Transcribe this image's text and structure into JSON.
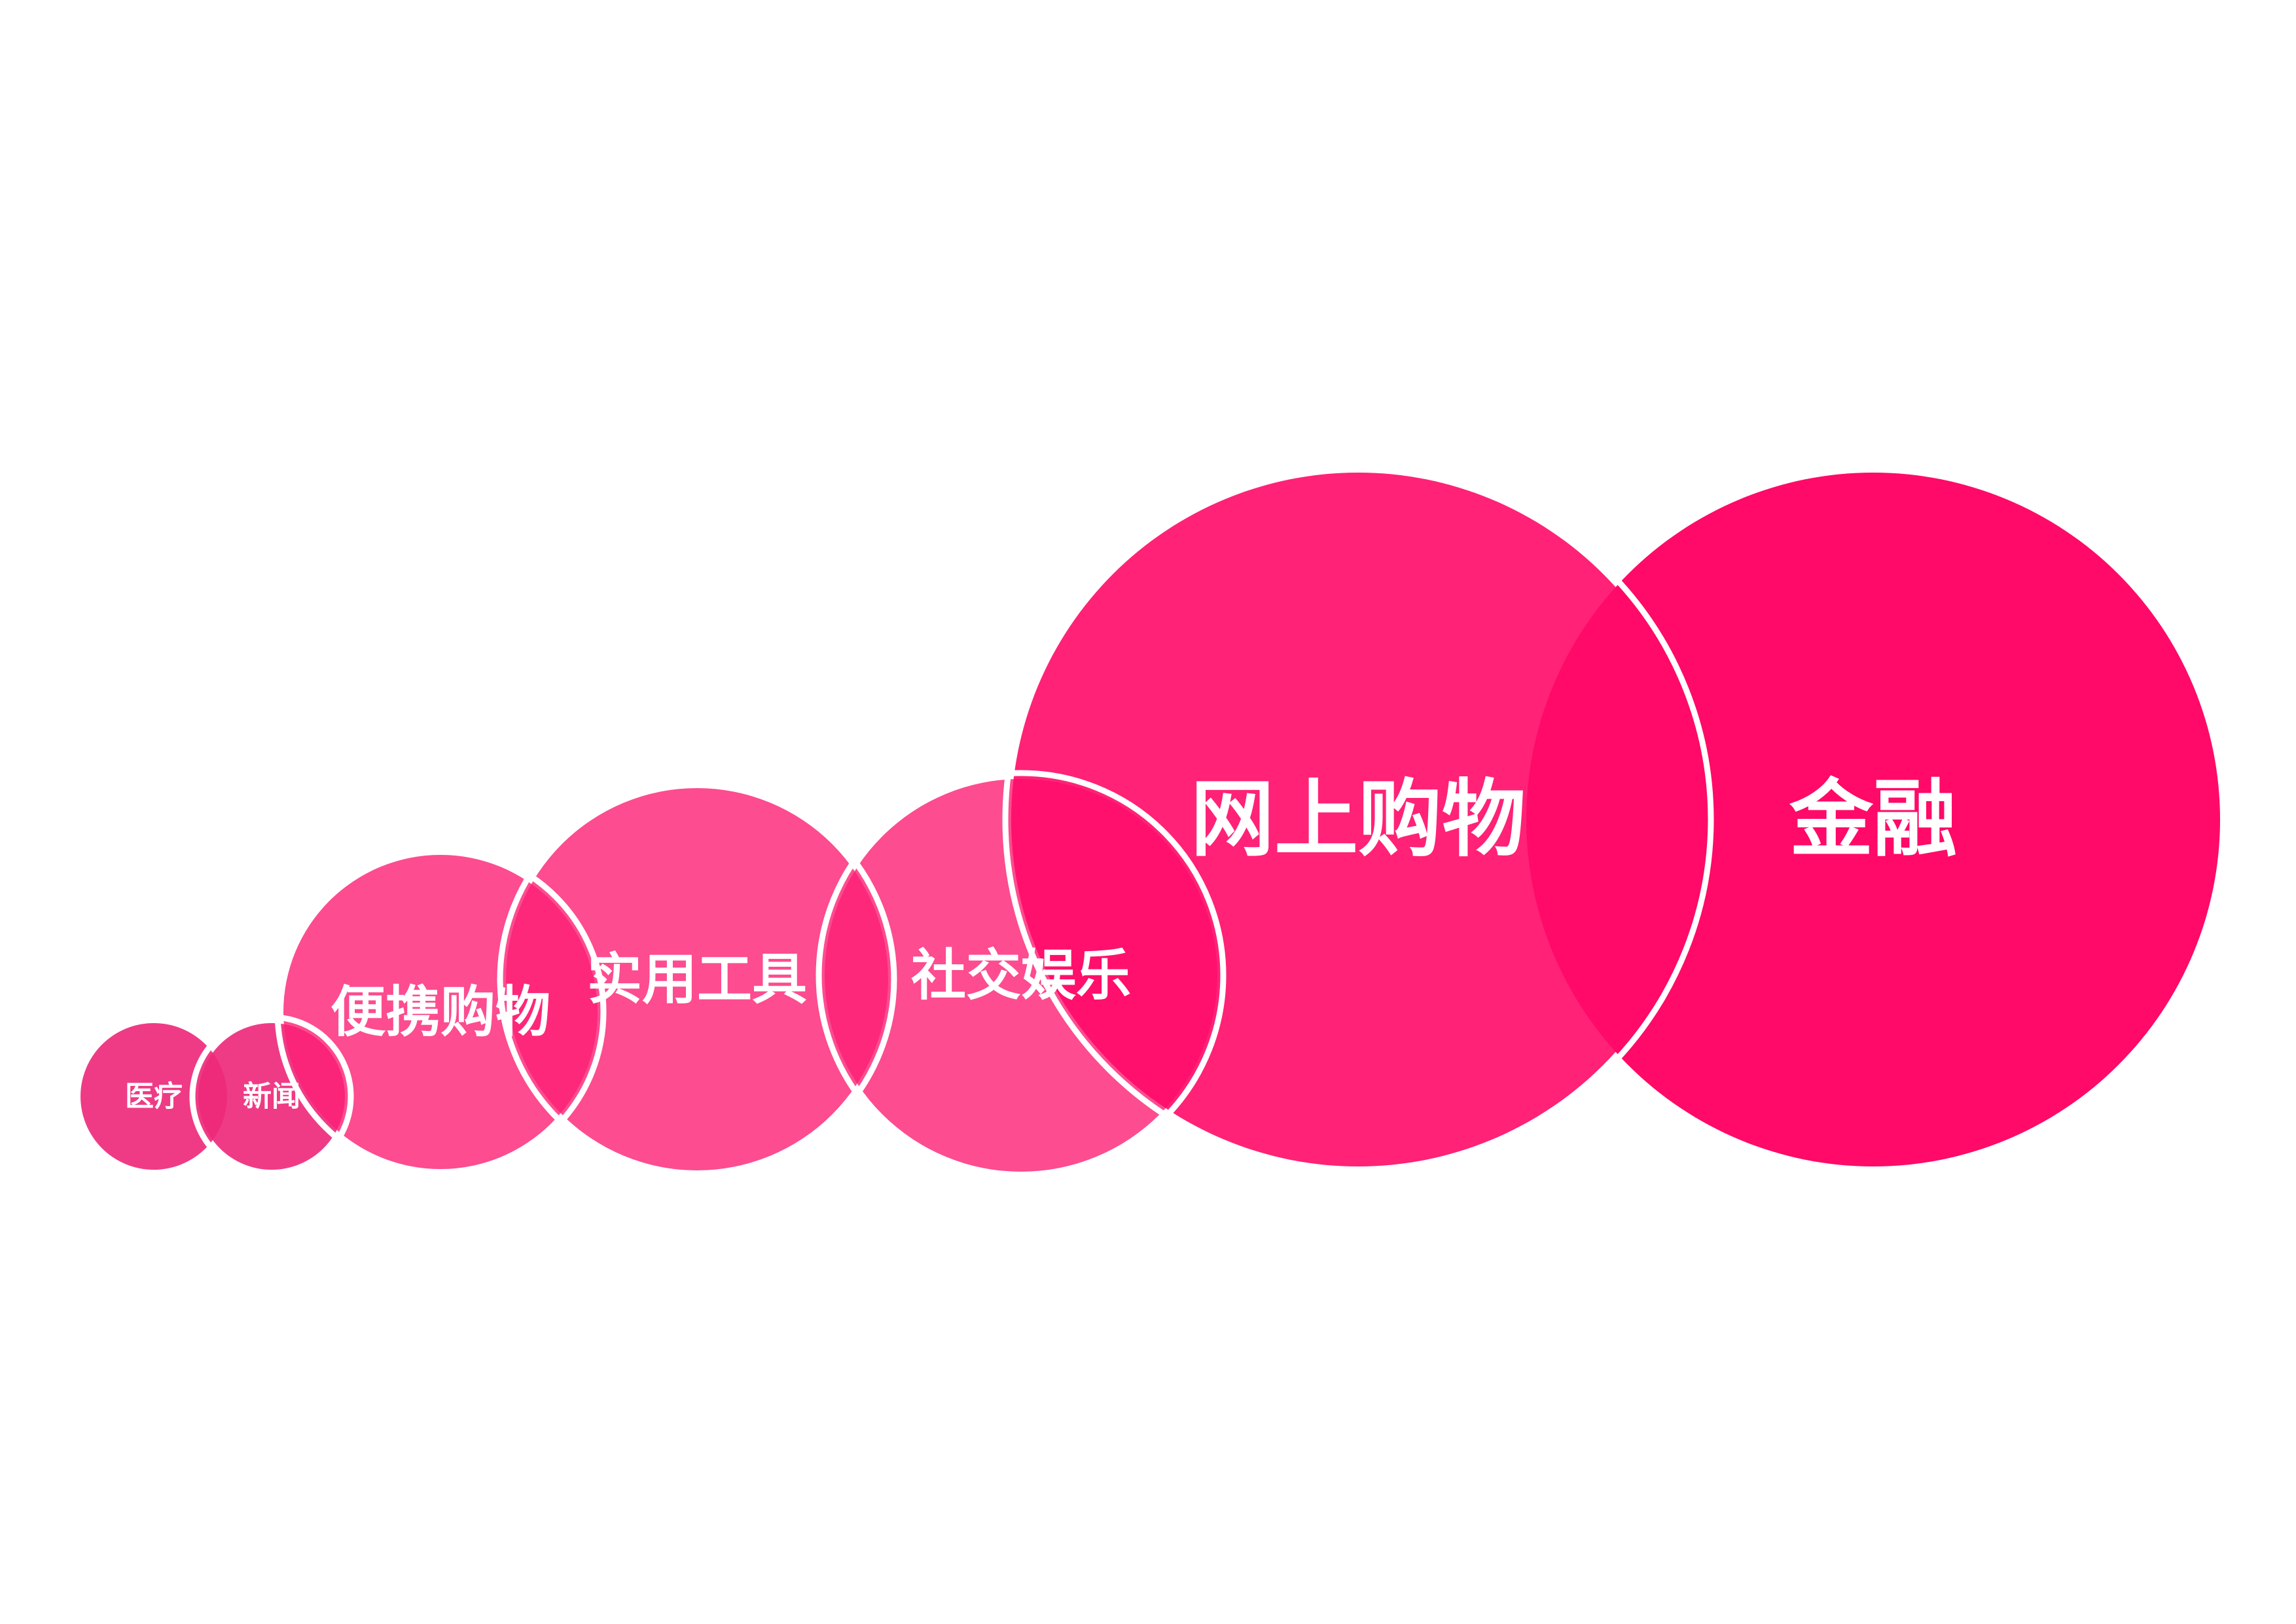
{
  "diagram": {
    "colors": {
      "background": "#ffffff",
      "outline": "#ffffff"
    },
    "circles": [
      {
        "id": "yiliao",
        "label": "医疗",
        "color": "#ee2a7b",
        "opacity": 0.92
      },
      {
        "id": "xinwen",
        "label": "新闻",
        "color": "#ee2a7b",
        "opacity": 0.92
      },
      {
        "id": "bianxie",
        "label": "便携购物",
        "color": "#fc1f74",
        "opacity": 0.8
      },
      {
        "id": "shiyong",
        "label": "实用工具",
        "color": "#fc1f74",
        "opacity": 0.8
      },
      {
        "id": "shejiao",
        "label": "社交娱乐",
        "color": "#fc1f74",
        "opacity": 0.8
      },
      {
        "id": "wangshang",
        "label": "网上购物",
        "color": "#ff0a68",
        "opacity": 0.9
      },
      {
        "id": "jinrong",
        "label": "金融",
        "color": "#ff0a68",
        "opacity": 1.0
      }
    ]
  }
}
